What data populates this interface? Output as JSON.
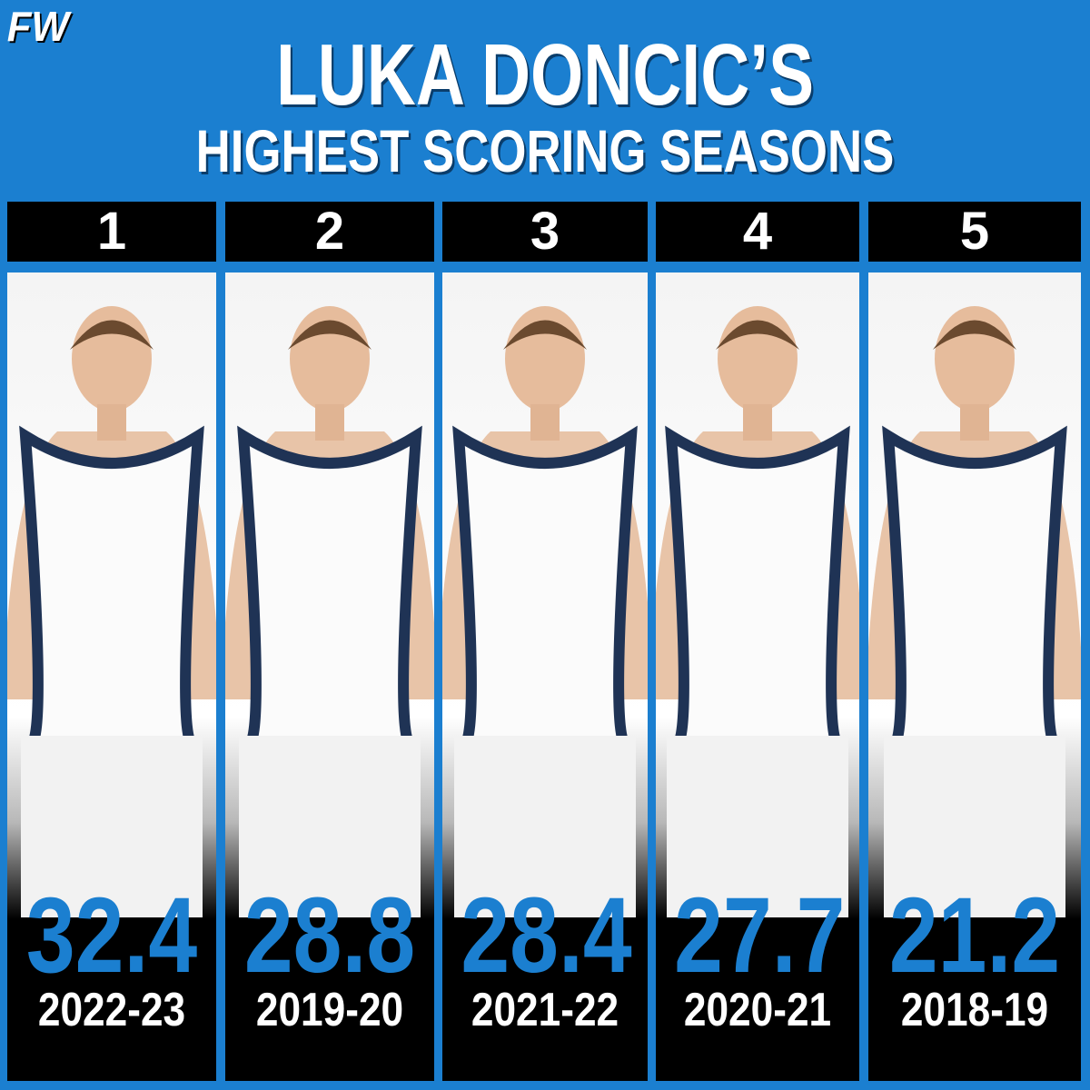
{
  "logo": "FW",
  "title": {
    "line1": "LUKA DONCIC’S",
    "line2": "HIGHEST SCORING SEASONS"
  },
  "seasons": [
    {
      "rank": 1,
      "points": 32.4,
      "season": "2022-23"
    },
    {
      "rank": 2,
      "points": 28.8,
      "season": "2019-20"
    },
    {
      "rank": 3,
      "points": 28.4,
      "season": "2021-22"
    },
    {
      "rank": 4,
      "points": 27.7,
      "season": "2020-21"
    },
    {
      "rank": 5,
      "points": 21.2,
      "season": "2018-19"
    }
  ]
}
